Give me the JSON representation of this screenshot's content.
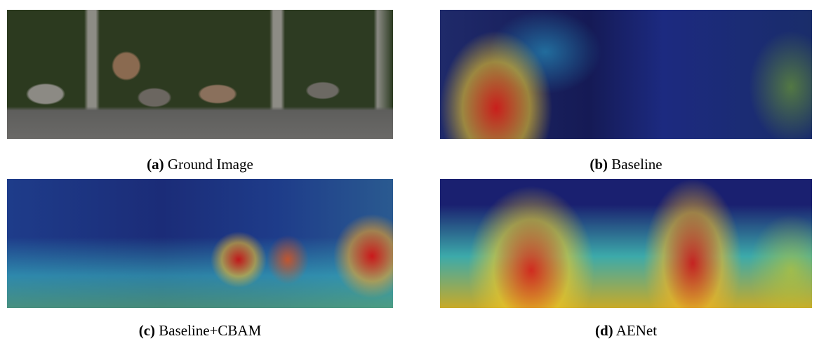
{
  "panels": [
    {
      "label": "(a)",
      "caption": "Ground Image"
    },
    {
      "label": "(b)",
      "caption": "Baseline"
    },
    {
      "label": "(c)",
      "caption": "Baseline+CBAM"
    },
    {
      "label": "(d)",
      "caption": "AENet"
    }
  ]
}
